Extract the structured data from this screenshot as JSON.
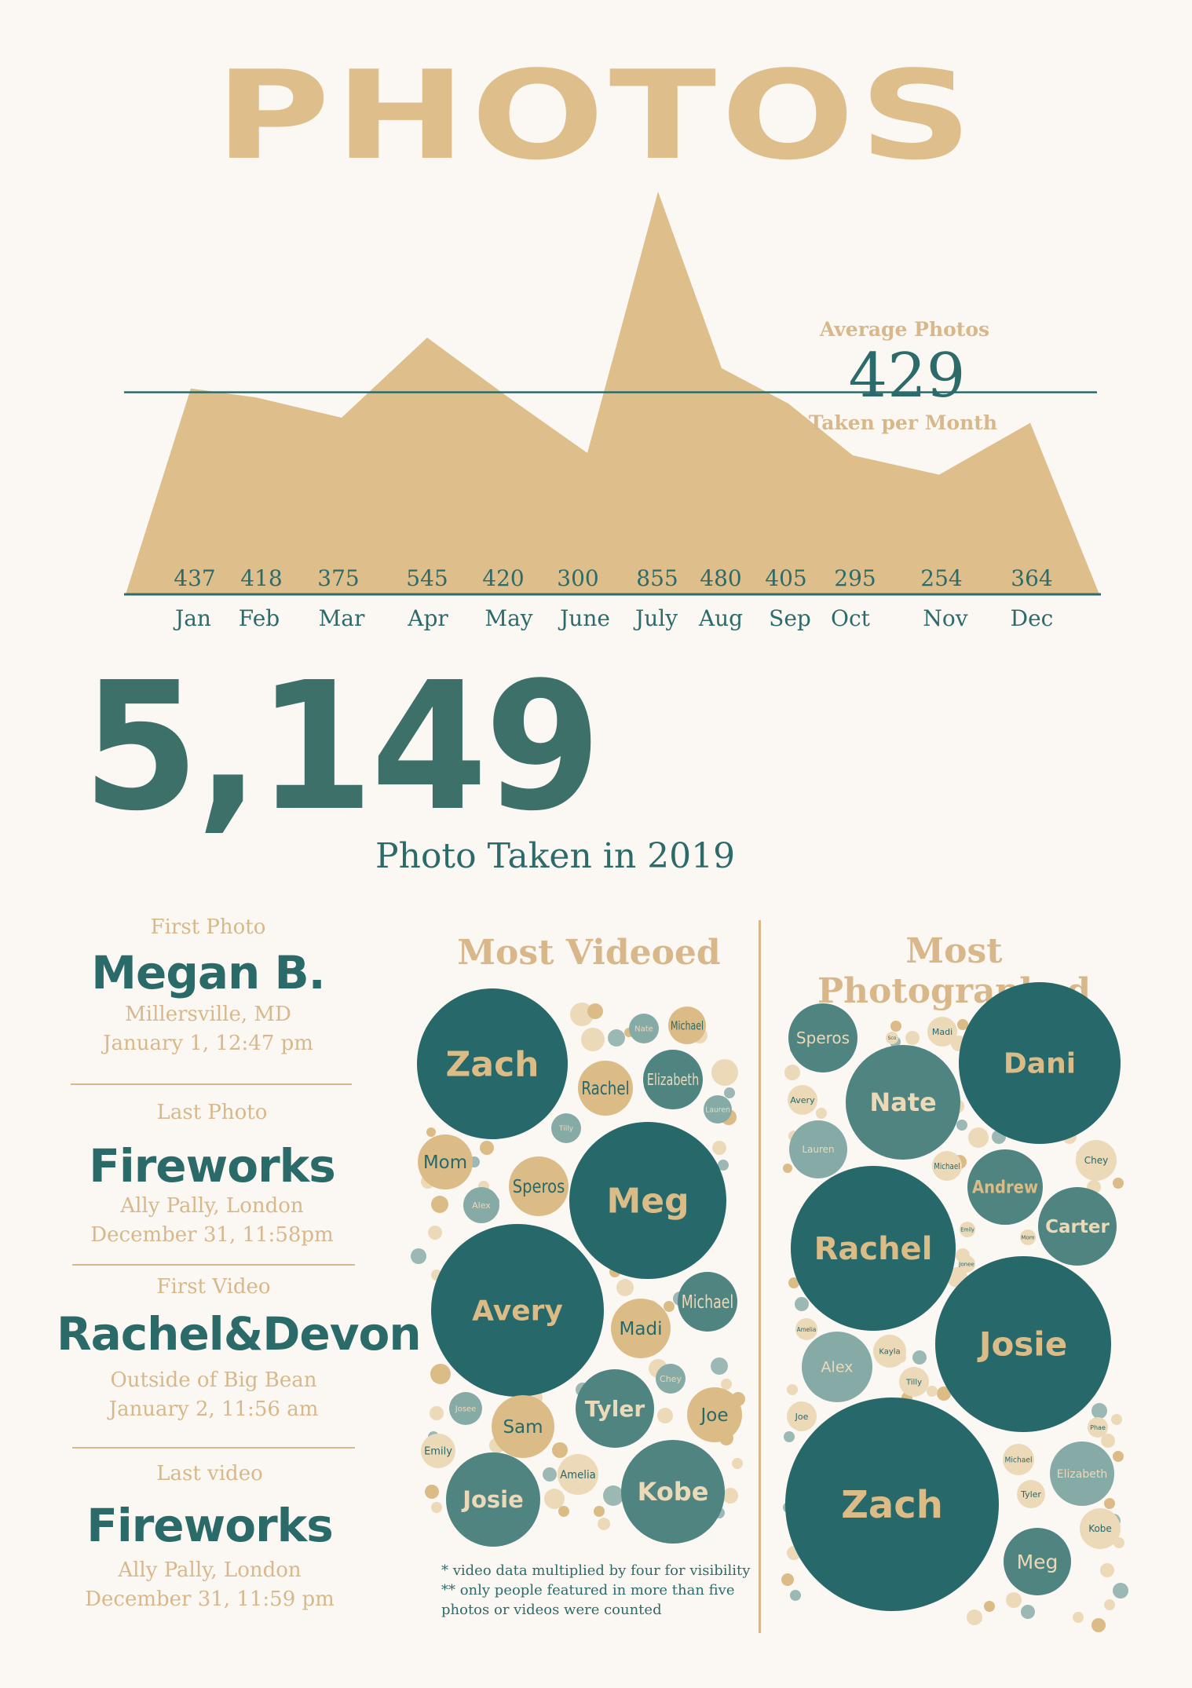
{
  "title": "PHOTOS",
  "average": {
    "label_top": "Average Photos",
    "value": "429",
    "label_bottom": "Taken per Month",
    "line_value": 429
  },
  "total": {
    "value": "5,149",
    "label": "Photo Taken in 2019"
  },
  "chart_data": [
    {
      "type": "area",
      "categories": [
        "Jan",
        "Feb",
        "Mar",
        "Apr",
        "May",
        "June",
        "July",
        "Aug",
        "Sep",
        "Oct",
        "Nov",
        "Dec"
      ],
      "values": [
        437,
        418,
        375,
        545,
        420,
        300,
        855,
        480,
        405,
        295,
        254,
        364
      ],
      "reference_line": 429,
      "colors": {
        "area": "#debe8a",
        "line": "#2d6b6a",
        "labels": "#2d6b6a"
      }
    },
    {
      "type": "bubble",
      "title": "Most Videoed",
      "people": [
        {
          "name": "Zach",
          "size": "xl"
        },
        {
          "name": "Rachel",
          "size": "xl"
        },
        {
          "name": "Elizabeth",
          "size": "xl"
        },
        {
          "name": "Nate",
          "size": "m"
        },
        {
          "name": "Michael",
          "size": "m"
        },
        {
          "name": "Lauren",
          "size": "s"
        },
        {
          "name": "Tilly",
          "size": "s"
        },
        {
          "name": "Mom",
          "size": "s"
        },
        {
          "name": "Speros",
          "size": "s"
        },
        {
          "name": "Meg",
          "size": "m"
        },
        {
          "name": "Alex",
          "size": "m"
        },
        {
          "name": "Michael",
          "size": "s"
        },
        {
          "name": "Madi",
          "size": "m"
        },
        {
          "name": "Chey",
          "size": "m"
        },
        {
          "name": "Avery",
          "size": "s"
        },
        {
          "name": "Tyler",
          "size": "l"
        },
        {
          "name": "Joe",
          "size": "m"
        },
        {
          "name": "Josee",
          "size": "s"
        },
        {
          "name": "Sam",
          "size": "m"
        },
        {
          "name": "Emily",
          "size": "s"
        },
        {
          "name": "Amelia",
          "size": "s"
        },
        {
          "name": "Josie",
          "size": "l"
        },
        {
          "name": "Kobe",
          "size": "l"
        }
      ],
      "notes": [
        "* video data multiplied by four for visibility",
        "** only people featured in more than five",
        "photos or videos were counted"
      ]
    },
    {
      "type": "bubble",
      "title": "Most Photographed",
      "people": [
        {
          "name": "Speros",
          "size": "m"
        },
        {
          "name": "Sco",
          "size": "s"
        },
        {
          "name": "Madi",
          "size": "s"
        },
        {
          "name": "Dani",
          "size": "xl"
        },
        {
          "name": "Nate",
          "size": "l"
        },
        {
          "name": "Avery",
          "size": "s"
        },
        {
          "name": "Lauren",
          "size": "m"
        },
        {
          "name": "Michael",
          "size": "s"
        },
        {
          "name": "Andrew",
          "size": "m"
        },
        {
          "name": "Chey",
          "size": "s"
        },
        {
          "name": "Carter",
          "size": "m"
        },
        {
          "name": "Rachel",
          "size": "xl"
        },
        {
          "name": "Emily",
          "size": "s"
        },
        {
          "name": "Mom",
          "size": "s"
        },
        {
          "name": "Jonee",
          "size": "s"
        },
        {
          "name": "Josie",
          "size": "xl"
        },
        {
          "name": "Amelia",
          "size": "s"
        },
        {
          "name": "Kayla",
          "size": "s"
        },
        {
          "name": "Alex",
          "size": "m"
        },
        {
          "name": "Tilly",
          "size": "s"
        },
        {
          "name": "Joe",
          "size": "s"
        },
        {
          "name": "Phae",
          "size": "s"
        },
        {
          "name": "Michael",
          "size": "s"
        },
        {
          "name": "Elizabeth",
          "size": "m"
        },
        {
          "name": "Tyler",
          "size": "s"
        },
        {
          "name": "Zach",
          "size": "xxl"
        },
        {
          "name": "Kobe",
          "size": "s"
        },
        {
          "name": "Meg",
          "size": "m"
        }
      ]
    }
  ],
  "events": [
    {
      "head": "First Photo",
      "name": "Megan B.",
      "place": "Millersville, MD",
      "time": "January 1, 12:47 pm"
    },
    {
      "head": "Last Photo",
      "name": "Fireworks",
      "place": "Ally Pally, London",
      "time": "December 31, 11:58pm"
    },
    {
      "head": "First Video",
      "name": "Rachel&Devon",
      "place": "Outside of Big Bean",
      "time": "January 2, 11:56 am"
    },
    {
      "head": "Last video",
      "name": "Fireworks",
      "place": "Ally Pally, London",
      "time": "December 31, 11:59 pm"
    }
  ]
}
